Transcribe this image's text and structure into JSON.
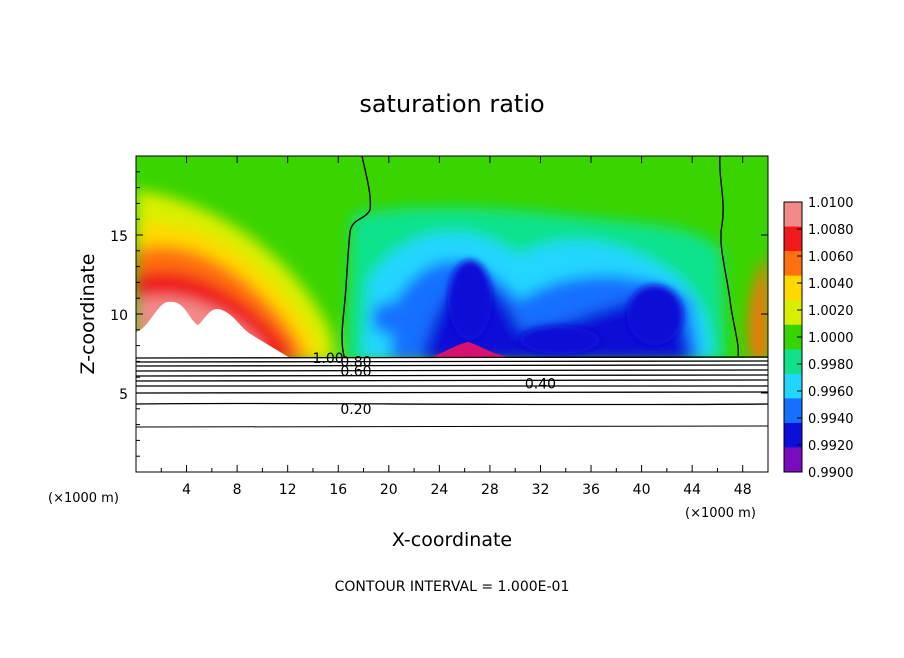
{
  "chart_data": {
    "type": "heatmap",
    "title": "saturation ratio",
    "xlabel": "X-coordinate",
    "ylabel": "Z-coordinate",
    "x_unit": "(×1000 m)",
    "xlim": [
      0,
      50
    ],
    "ylim": [
      0,
      20
    ],
    "x_ticks": [
      "4",
      "8",
      "12",
      "16",
      "20",
      "24",
      "28",
      "32",
      "36",
      "40",
      "44",
      "48"
    ],
    "y_ticks": [
      "5",
      "10",
      "15"
    ],
    "colorbar": {
      "ticks": [
        "1.0100",
        "1.0080",
        "1.0060",
        "1.0040",
        "1.0020",
        "1.0000",
        "0.9980",
        "0.9960",
        "0.9940",
        "0.9920",
        "0.9900"
      ],
      "colors": [
        "#f28a8a",
        "#ef1a1a",
        "#ff7010",
        "#ffd800",
        "#d9ef00",
        "#36d400",
        "#10e28c",
        "#20d6ff",
        "#1670ff",
        "#0a10d8",
        "#7a0cc0"
      ],
      "range": [
        0.99,
        1.01
      ]
    },
    "contour_labels": [
      {
        "text": "1.00",
        "x": 15.2,
        "z": 7.2
      },
      {
        "text": "0.80",
        "x": 17.4,
        "z": 7.0
      },
      {
        "text": "0.60",
        "x": 17.4,
        "z": 6.4
      },
      {
        "text": "0.40",
        "x": 32.0,
        "z": 5.6
      },
      {
        "text": "0.20",
        "x": 17.4,
        "z": 4.0
      }
    ],
    "footer": "CONTOUR INTERVAL = 1.000E-01"
  }
}
